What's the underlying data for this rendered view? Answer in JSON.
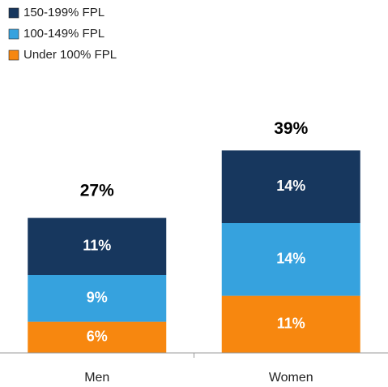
{
  "chart_data": {
    "type": "stacked_bar",
    "categories": [
      "Men",
      "Women"
    ],
    "series": [
      {
        "name": "Under 100% FPL",
        "color": "#f7870f",
        "values": [
          6,
          11
        ],
        "value_labels": [
          "6%",
          "11%"
        ]
      },
      {
        "name": "100-149% FPL",
        "color": "#36a2de",
        "values": [
          9,
          14
        ],
        "value_labels": [
          "9%",
          "14%"
        ]
      },
      {
        "name": "150-199% FPL",
        "color": "#17375e",
        "values": [
          11,
          14
        ],
        "value_labels": [
          "11%",
          "14%"
        ]
      }
    ],
    "totals": [
      27,
      39
    ],
    "total_labels": [
      "27%",
      "39%"
    ],
    "ylim": [
      0,
      50
    ]
  }
}
